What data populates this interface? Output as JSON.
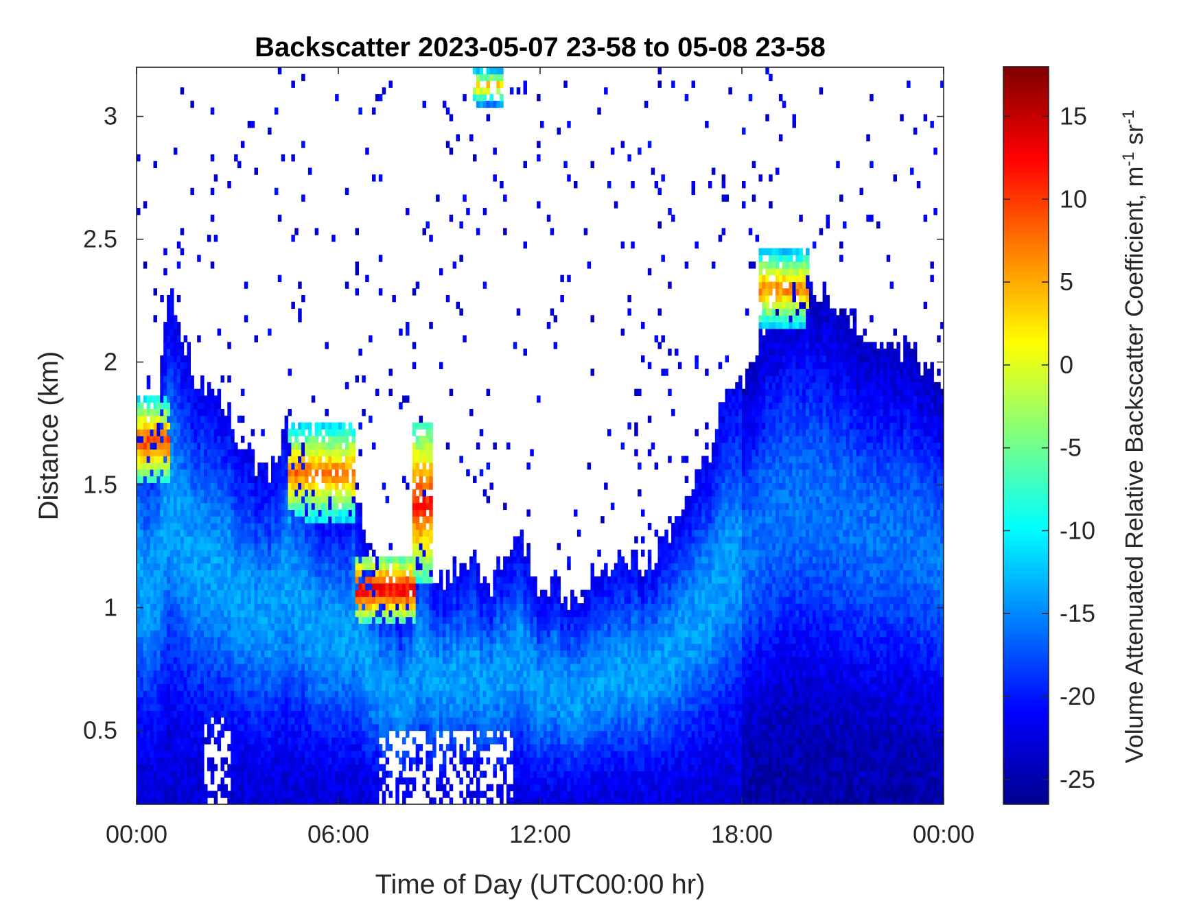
{
  "chart_data": {
    "type": "heatmap",
    "title": "Backscatter 2023-05-07 23-58 to 05-08 23-58",
    "xlabel": "Time of Day (UTC00:00 hr)",
    "ylabel": "Distance (km)",
    "xlim": [
      0,
      24
    ],
    "ylim": [
      0.2,
      3.2
    ],
    "x_ticks": [
      {
        "value": 0,
        "label": "00:00"
      },
      {
        "value": 6,
        "label": "06:00"
      },
      {
        "value": 12,
        "label": "12:00"
      },
      {
        "value": 18,
        "label": "18:00"
      },
      {
        "value": 24,
        "label": "00:00"
      }
    ],
    "y_ticks": [
      {
        "value": 0.5,
        "label": "0.5"
      },
      {
        "value": 1,
        "label": "1"
      },
      {
        "value": 1.5,
        "label": "1.5"
      },
      {
        "value": 2,
        "label": "2"
      },
      {
        "value": 2.5,
        "label": "2.5"
      },
      {
        "value": 3,
        "label": "3"
      }
    ],
    "colorbar": {
      "label_main": "Volume Attenuated Relative Backscatter Coefficient, m",
      "label_exp1": "-1",
      "label_mid": " sr",
      "label_exp2": "-1",
      "range": [
        -26.5,
        18
      ],
      "colormap": "jet",
      "ticks": [
        {
          "value": 15,
          "label": "15"
        },
        {
          "value": 10,
          "label": "10"
        },
        {
          "value": 5,
          "label": "5"
        },
        {
          "value": 0,
          "label": "0"
        },
        {
          "value": -5,
          "label": "-5"
        },
        {
          "value": -10,
          "label": "-10"
        },
        {
          "value": -15,
          "label": "-15"
        },
        {
          "value": -20,
          "label": "-20"
        },
        {
          "value": -25,
          "label": "-25"
        }
      ]
    },
    "boundary_layer_top_km": [
      [
        0,
        1.85
      ],
      [
        0.5,
        1.7
      ],
      [
        1,
        2.3
      ],
      [
        1.5,
        2.0
      ],
      [
        2,
        1.9
      ],
      [
        2.5,
        1.85
      ],
      [
        3,
        1.7
      ],
      [
        3.5,
        1.6
      ],
      [
        4,
        1.55
      ],
      [
        4.5,
        1.75
      ],
      [
        5,
        1.6
      ],
      [
        5.5,
        1.45
      ],
      [
        6,
        1.45
      ],
      [
        6.5,
        1.5
      ],
      [
        7,
        1.2
      ],
      [
        7.5,
        1.1
      ],
      [
        8,
        1.0
      ],
      [
        8.5,
        1.3
      ],
      [
        9,
        1.1
      ],
      [
        9.5,
        1.15
      ],
      [
        10,
        1.2
      ],
      [
        10.5,
        1.1
      ],
      [
        11,
        1.25
      ],
      [
        11.5,
        1.25
      ],
      [
        12,
        1.05
      ],
      [
        12.5,
        1.1
      ],
      [
        13,
        1.0
      ],
      [
        13.5,
        1.15
      ],
      [
        14,
        1.15
      ],
      [
        14.5,
        1.2
      ],
      [
        15,
        1.15
      ],
      [
        15.5,
        1.25
      ],
      [
        16,
        1.35
      ],
      [
        16.5,
        1.5
      ],
      [
        17,
        1.6
      ],
      [
        17.5,
        1.85
      ],
      [
        18,
        1.9
      ],
      [
        18.5,
        2.1
      ],
      [
        19,
        2.25
      ],
      [
        19.5,
        2.3
      ],
      [
        20,
        2.3
      ],
      [
        20.5,
        2.3
      ],
      [
        21,
        2.2
      ],
      [
        21.5,
        2.15
      ],
      [
        22,
        2.1
      ],
      [
        22.5,
        2.05
      ],
      [
        23,
        2.05
      ],
      [
        23.5,
        1.95
      ],
      [
        24,
        1.9
      ]
    ],
    "high_signal_layers": [
      {
        "x_start": 0,
        "x_end": 1,
        "top_km": 1.85,
        "bottom_km": 1.5,
        "peak_value": 10
      },
      {
        "x_start": 4.5,
        "x_end": 6.5,
        "top_km": 1.75,
        "bottom_km": 1.35,
        "peak_value": 8
      },
      {
        "x_start": 6.5,
        "x_end": 8.3,
        "top_km": 1.2,
        "bottom_km": 0.95,
        "peak_value": 14
      },
      {
        "x_start": 8.2,
        "x_end": 8.8,
        "top_km": 1.75,
        "bottom_km": 1.1,
        "peak_value": 12
      },
      {
        "x_start": 10.0,
        "x_end": 10.9,
        "top_km": 3.2,
        "bottom_km": 3.05,
        "peak_value": 5
      },
      {
        "x_start": 18.5,
        "x_end": 20.0,
        "top_km": 2.45,
        "bottom_km": 2.15,
        "peak_value": 8
      }
    ],
    "regime_shift_x": 18,
    "clear_gap_near_surface": [
      {
        "x_start": 7.2,
        "x_end": 11.2,
        "top_km": 0.5
      },
      {
        "x_start": 2.0,
        "x_end": 2.8,
        "top_km": 0.55
      }
    ]
  }
}
